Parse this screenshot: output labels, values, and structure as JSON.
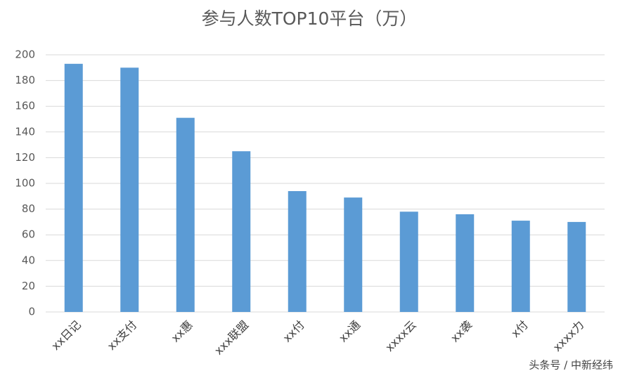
{
  "chart_data": {
    "type": "bar",
    "title": "参与人数TOP10平台（万）",
    "categories": [
      "xx日记",
      "xx支付",
      "xx惠",
      "xxx联盟",
      "xx付",
      "xx通",
      "xxxx云",
      "xx袭",
      "x付",
      "xxxx力"
    ],
    "values": [
      193,
      190,
      151,
      125,
      94,
      89,
      78,
      76,
      71,
      70
    ],
    "color": "#5b9bd5",
    "ylim": [
      0,
      200
    ],
    "yticks": [
      0,
      20,
      40,
      60,
      80,
      100,
      120,
      140,
      160,
      180,
      200
    ],
    "grid": true
  },
  "watermark": "头条号 / 中新经纬"
}
